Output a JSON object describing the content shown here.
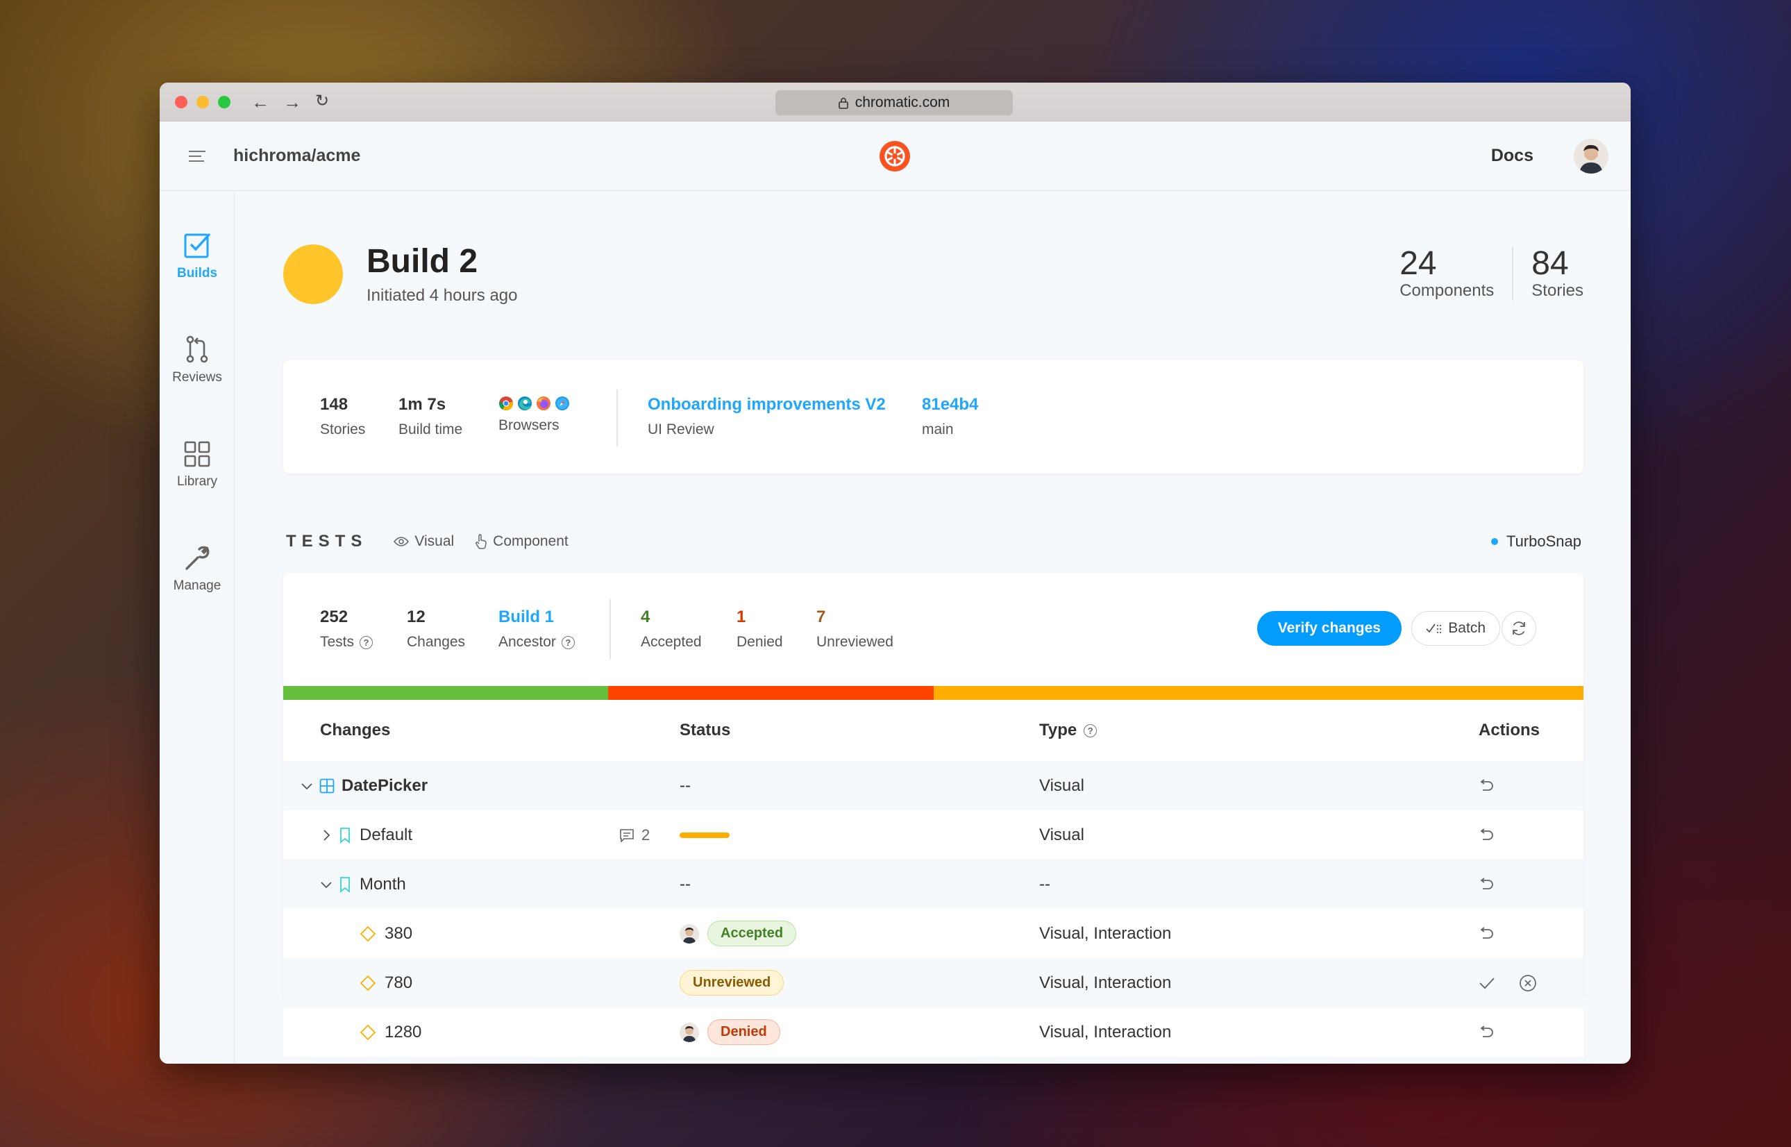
{
  "browser": {
    "url": "chromatic.com",
    "light_colors": [
      "#fe5f57",
      "#febc2e",
      "#28c840"
    ]
  },
  "header": {
    "org": "hichroma/acme",
    "docs_label": "Docs"
  },
  "sidebar": {
    "items": [
      {
        "label": "Builds",
        "icon": "checkbox-icon",
        "active": true
      },
      {
        "label": "Reviews",
        "icon": "pull-request-icon",
        "active": false
      },
      {
        "label": "Library",
        "icon": "grid-icon",
        "active": false
      },
      {
        "label": "Manage",
        "icon": "wrench-icon",
        "active": false
      }
    ]
  },
  "build": {
    "title": "Build 2",
    "subtitle": "Initiated 4 hours ago",
    "status_color": "#ffc52b",
    "components_count": "24",
    "components_label": "Components",
    "stories_count": "84",
    "stories_label": "Stories"
  },
  "summary": {
    "stories_value": "148",
    "stories_label": "Stories",
    "build_time_value": "1m 7s",
    "build_time_label": "Build time",
    "browsers_label": "Browsers",
    "browser_icons": [
      "chrome-icon",
      "edge-icon",
      "firefox-icon",
      "safari-icon"
    ],
    "review_title": "Onboarding improvements V2",
    "review_label": "UI Review",
    "commit_hash": "81e4b4",
    "branch": "main"
  },
  "tests": {
    "title": "TESTS",
    "visual_label": "Visual",
    "component_label": "Component",
    "turbosnap_label": "TurboSnap",
    "total_value": "252",
    "total_label": "Tests",
    "changes_value": "12",
    "changes_label": "Changes",
    "ancestor_value": "Build 1",
    "ancestor_label": "Ancestor",
    "accepted_value": "4",
    "accepted_label": "Accepted",
    "denied_value": "1",
    "denied_label": "Denied",
    "unreviewed_value": "7",
    "unreviewed_label": "Unreviewed",
    "verify_label": "Verify changes",
    "batch_label": "Batch",
    "colors": {
      "accepted": "#66bf3c",
      "denied": "#ff4400",
      "unreviewed": "#ffae00"
    }
  },
  "table": {
    "col_changes": "Changes",
    "col_status": "Status",
    "col_type": "Type",
    "col_actions": "Actions",
    "rows": [
      {
        "name": "DatePicker",
        "status": "--",
        "type": "Visual"
      },
      {
        "name": "Default",
        "comments": "2",
        "type": "Visual"
      },
      {
        "name": "Month",
        "status": "--",
        "type": "--"
      },
      {
        "name": "380",
        "status": "Accepted",
        "type": "Visual, Interaction"
      },
      {
        "name": "780",
        "status": "Unreviewed",
        "type": "Visual, Interaction"
      },
      {
        "name": "1280",
        "status": "Denied",
        "type": "Visual, Interaction"
      }
    ]
  }
}
